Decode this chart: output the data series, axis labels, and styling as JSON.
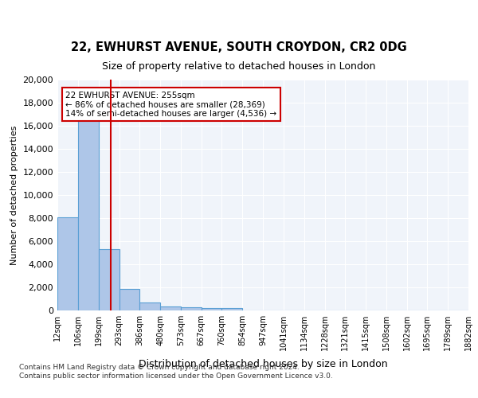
{
  "title": "22, EWHURST AVENUE, SOUTH CROYDON, CR2 0DG",
  "subtitle": "Size of property relative to detached houses in London",
  "xlabel": "Distribution of detached houses by size in London",
  "ylabel": "Number of detached properties",
  "bar_color": "#aec6e8",
  "bar_edge_color": "#5a9fd4",
  "property_line_color": "#cc0000",
  "property_size": 255,
  "annotation_text": "22 EWHURST AVENUE: 255sqm\n← 86% of detached houses are smaller (28,369)\n14% of semi-detached houses are larger (4,536) →",
  "annotation_box_color": "#cc0000",
  "bin_edges": [
    12,
    106,
    199,
    293,
    386,
    480,
    573,
    667,
    760,
    854,
    947,
    1041,
    1134,
    1228,
    1321,
    1415,
    1508,
    1602,
    1695,
    1789,
    1882
  ],
  "bin_labels": [
    "12sqm",
    "106sqm",
    "199sqm",
    "293sqm",
    "386sqm",
    "480sqm",
    "573sqm",
    "667sqm",
    "760sqm",
    "854sqm",
    "947sqm",
    "1041sqm",
    "1134sqm",
    "1228sqm",
    "1321sqm",
    "1415sqm",
    "1508sqm",
    "1602sqm",
    "1695sqm",
    "1789sqm",
    "1882sqm"
  ],
  "bar_heights": [
    8100,
    16500,
    5300,
    1850,
    700,
    350,
    275,
    225,
    200,
    0,
    0,
    0,
    0,
    0,
    0,
    0,
    0,
    0,
    0,
    0
  ],
  "ylim": [
    0,
    20000
  ],
  "yticks": [
    0,
    2000,
    4000,
    6000,
    8000,
    10000,
    12000,
    14000,
    16000,
    18000,
    20000
  ],
  "background_color": "#f0f4fa",
  "footer_text": "Contains HM Land Registry data © Crown copyright and database right 2024.\nContains public sector information licensed under the Open Government Licence v3.0.",
  "fig_bg_color": "#ffffff"
}
